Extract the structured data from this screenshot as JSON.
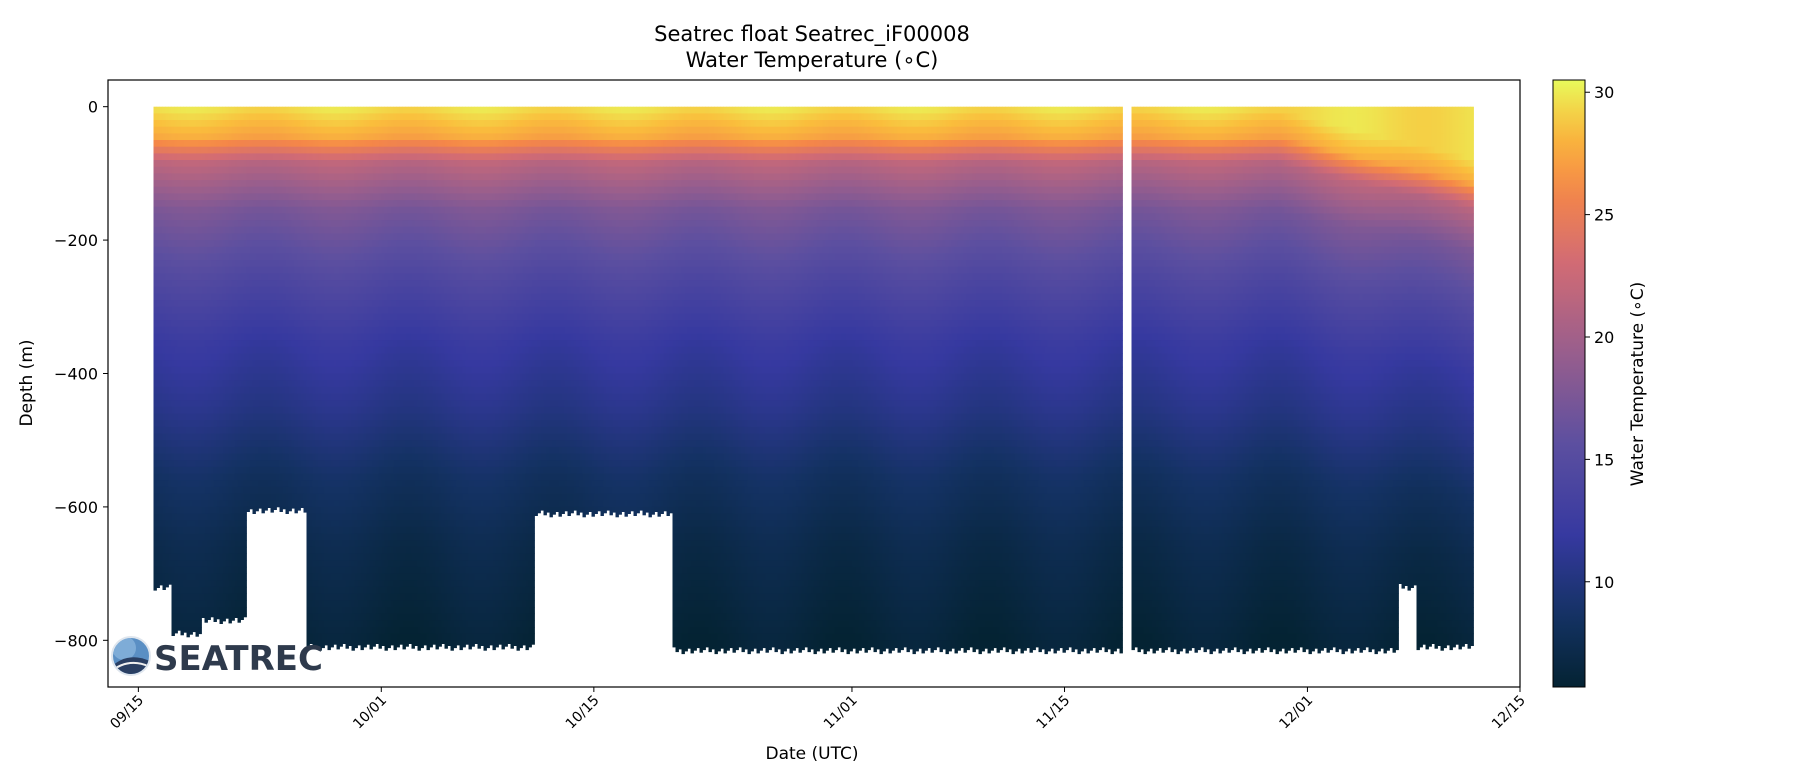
{
  "chart_data": {
    "type": "heatmap",
    "title": "Seatrec float Seatrec_iF00008",
    "subtitle": "Water Temperature (∘C)",
    "xlabel": "Date (UTC)",
    "ylabel": "Depth (m)",
    "x_axis": {
      "type": "date",
      "range": [
        "2022-09-13",
        "2022-12-15"
      ],
      "ticks": [
        {
          "value": "2022-09-15",
          "label": "09/15"
        },
        {
          "value": "2022-10-01",
          "label": "10/01"
        },
        {
          "value": "2022-10-15",
          "label": "10/15"
        },
        {
          "value": "2022-11-01",
          "label": "11/01"
        },
        {
          "value": "2022-11-15",
          "label": "11/15"
        },
        {
          "value": "2022-12-01",
          "label": "12/01"
        },
        {
          "value": "2022-12-15",
          "label": "12/15"
        }
      ]
    },
    "y_axis": {
      "range": [
        -870,
        40
      ],
      "ticks": [
        {
          "value": 0,
          "label": "0"
        },
        {
          "value": -200,
          "label": "−200"
        },
        {
          "value": -400,
          "label": "−400"
        },
        {
          "value": -600,
          "label": "−600"
        },
        {
          "value": -800,
          "label": "−800"
        }
      ]
    },
    "colorbar": {
      "label": "Water Temperature (∘C)",
      "range": [
        5.7,
        30.5
      ],
      "colormap": "thermal",
      "ticks": [
        {
          "value": 10,
          "label": "10"
        },
        {
          "value": 15,
          "label": "15"
        },
        {
          "value": 20,
          "label": "20"
        },
        {
          "value": 25,
          "label": "25"
        },
        {
          "value": 30,
          "label": "30"
        }
      ]
    },
    "profiles": {
      "start": "2022-09-16",
      "end": "2022-12-12",
      "data_gap": "2022-11-19",
      "max_depth_by_period": [
        {
          "from": "2022-09-16",
          "to": "2022-09-17",
          "max_depth": -720
        },
        {
          "from": "2022-09-17",
          "to": "2022-09-19",
          "max_depth": -790
        },
        {
          "from": "2022-09-19",
          "to": "2022-09-22",
          "max_depth": -770
        },
        {
          "from": "2022-09-22",
          "to": "2022-09-26",
          "max_depth": -605
        },
        {
          "from": "2022-09-26",
          "to": "2022-10-11",
          "max_depth": -810
        },
        {
          "from": "2022-10-11",
          "to": "2022-10-20",
          "max_depth": -610
        },
        {
          "from": "2022-10-20",
          "to": "2022-12-07",
          "max_depth": -815
        },
        {
          "from": "2022-12-07",
          "to": "2022-12-08",
          "max_depth": -720
        },
        {
          "from": "2022-12-08",
          "to": "2022-12-12",
          "max_depth": -810
        }
      ],
      "temperature_profile": [
        {
          "depth": 0,
          "temp": 29.5
        },
        {
          "depth": -40,
          "temp": 27.5
        },
        {
          "depth": -80,
          "temp": 21.5
        },
        {
          "depth": -150,
          "temp": 17.5
        },
        {
          "depth": -250,
          "temp": 14.5
        },
        {
          "depth": -350,
          "temp": 12.0
        },
        {
          "depth": -450,
          "temp": 10.5
        },
        {
          "depth": -550,
          "temp": 8.5
        },
        {
          "depth": -650,
          "temp": 7.2
        },
        {
          "depth": -800,
          "temp": 6.0
        }
      ],
      "warm_layer_deepening": {
        "from": "2022-11-29",
        "to": "2022-12-12",
        "mixed_layer_depth_end": -140
      }
    },
    "grid": false,
    "logo": "SEATREC"
  }
}
